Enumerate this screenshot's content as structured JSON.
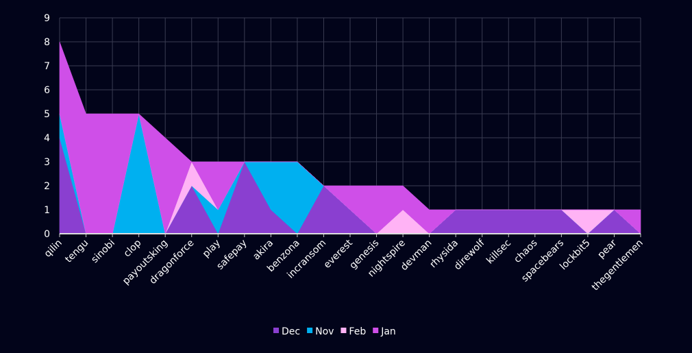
{
  "chart_data": {
    "type": "area",
    "stacked": true,
    "categories": [
      "qilin",
      "tengu",
      "sinobi",
      "clop",
      "payoutsking",
      "dragonforce",
      "play",
      "safepay",
      "akira",
      "benzona",
      "incransom",
      "everest",
      "genesis",
      "nightspire",
      "devman",
      "rhysida",
      "direwolf",
      "killsec",
      "chaos",
      "spacebears",
      "lockbit5",
      "pear",
      "thegentlemen"
    ],
    "series": [
      {
        "name": "Dec",
        "color": "#8a3fd0",
        "values": [
          4,
          0,
          0,
          0,
          0,
          2,
          0,
          3,
          1,
          0,
          2,
          1,
          0,
          0,
          0,
          1,
          1,
          1,
          1,
          1,
          0,
          1,
          0
        ]
      },
      {
        "name": "Nov",
        "color": "#00b0f0",
        "values": [
          1,
          0,
          0,
          5,
          0,
          0,
          1,
          0,
          2,
          3,
          0,
          0,
          0,
          0,
          0,
          0,
          0,
          0,
          0,
          0,
          0,
          0,
          0
        ]
      },
      {
        "name": "Feb",
        "color": "#ffb3f5",
        "values": [
          0,
          0,
          0,
          0,
          0,
          1,
          0,
          0,
          0,
          0,
          0,
          0,
          0,
          1,
          0,
          0,
          0,
          0,
          0,
          0,
          1,
          0,
          0
        ]
      },
      {
        "name": "Jan",
        "color": "#cf4fe8",
        "values": [
          3,
          5,
          5,
          0,
          4,
          0,
          2,
          0,
          0,
          0,
          0,
          1,
          2,
          1,
          1,
          0,
          0,
          0,
          0,
          0,
          0,
          0,
          1
        ]
      }
    ],
    "ylim": [
      0,
      9
    ],
    "yticks": [
      "0",
      "1",
      "2",
      "3",
      "4",
      "5",
      "6",
      "7",
      "8",
      "9"
    ],
    "grid": true,
    "legend": "bottom"
  }
}
